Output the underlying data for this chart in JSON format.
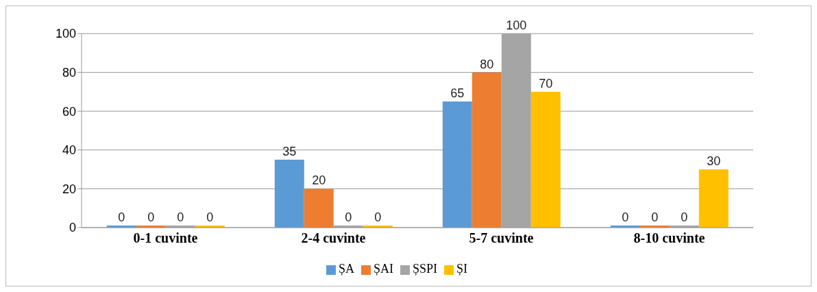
{
  "chart_data": {
    "type": "bar",
    "categories": [
      "0-1 cuvinte",
      "2-4 cuvinte",
      "5-7 cuvinte",
      "8-10 cuvinte"
    ],
    "series": [
      {
        "name": "ȘA",
        "color": "#5b9bd5",
        "values": [
          0,
          35,
          65,
          0
        ]
      },
      {
        "name": "ȘAI",
        "color": "#ed7d31",
        "values": [
          0,
          20,
          80,
          0
        ]
      },
      {
        "name": "ȘSPI",
        "color": "#a5a5a5",
        "values": [
          0,
          0,
          100,
          0
        ]
      },
      {
        "name": "ȘI",
        "color": "#ffc000",
        "values": [
          0,
          0,
          70,
          30
        ]
      }
    ],
    "ylim": [
      0,
      100
    ],
    "yticks": [
      0,
      20,
      40,
      60,
      80,
      100
    ],
    "grid": "y",
    "legend": "bottom",
    "data_labels": true
  }
}
